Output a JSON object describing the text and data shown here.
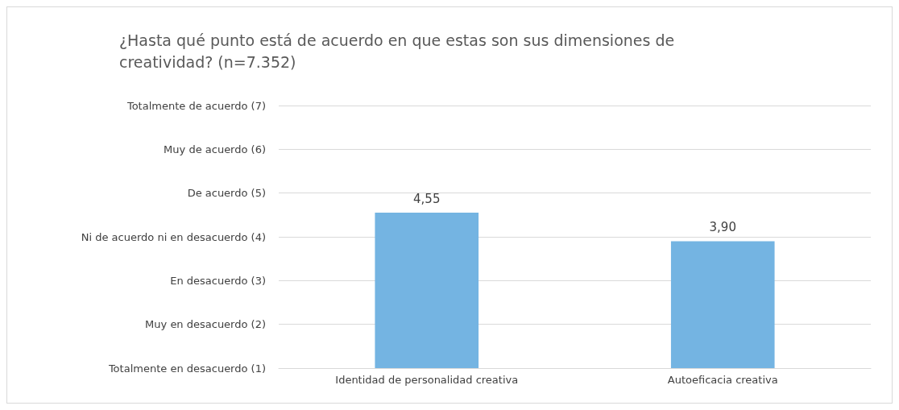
{
  "chart_data": {
    "type": "bar",
    "title": "¿Hasta qué punto está de acuerdo en que estas son sus dimensiones de creatividad? (n=7.352)",
    "categories": [
      "Identidad de personalidad creativa",
      "Autoeficacia creativa"
    ],
    "values": [
      4.55,
      3.9
    ],
    "value_labels": [
      "4,55",
      "3,90"
    ],
    "color": "#74b4e2",
    "ylim": [
      1,
      7
    ],
    "yticks": [
      {
        "value": 1,
        "label": "Totalmente en desacuerdo (1)"
      },
      {
        "value": 2,
        "label": "Muy en desacuerdo (2)"
      },
      {
        "value": 3,
        "label": "En desacuerdo (3)"
      },
      {
        "value": 4,
        "label": "Ni de acuerdo ni en desacuerdo (4)"
      },
      {
        "value": 5,
        "label": "De acuerdo (5)"
      },
      {
        "value": 6,
        "label": "Muy de acuerdo (6)"
      },
      {
        "value": 7,
        "label": "Totalmente de acuerdo (7)"
      }
    ],
    "grid": "y"
  }
}
